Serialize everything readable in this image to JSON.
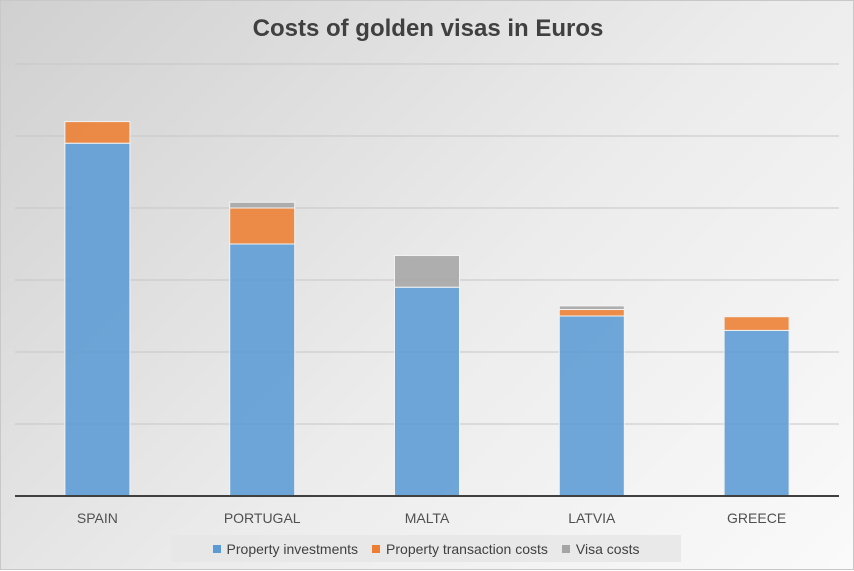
{
  "chart_data": {
    "type": "bar",
    "stacked": true,
    "title": "Costs of golden visas in Euros",
    "xlabel": "",
    "ylabel": "",
    "categories": [
      "SPAIN",
      "PORTUGAL",
      "MALTA",
      "LATVIA",
      "GREECE"
    ],
    "ylim": [
      0,
      600000
    ],
    "grid": true,
    "legend_position": "bottom",
    "series": [
      {
        "name": "Property investments",
        "color": "#5b9bd5",
        "values": [
          490000,
          350000,
          290000,
          250000,
          230000
        ]
      },
      {
        "name": "Property transaction costs",
        "color": "#ed7d31",
        "values": [
          30000,
          50000,
          0,
          9000,
          19000
        ]
      },
      {
        "name": "Visa costs",
        "color": "#a5a5a5",
        "values": [
          0,
          8000,
          44000,
          5000,
          0
        ]
      }
    ]
  }
}
